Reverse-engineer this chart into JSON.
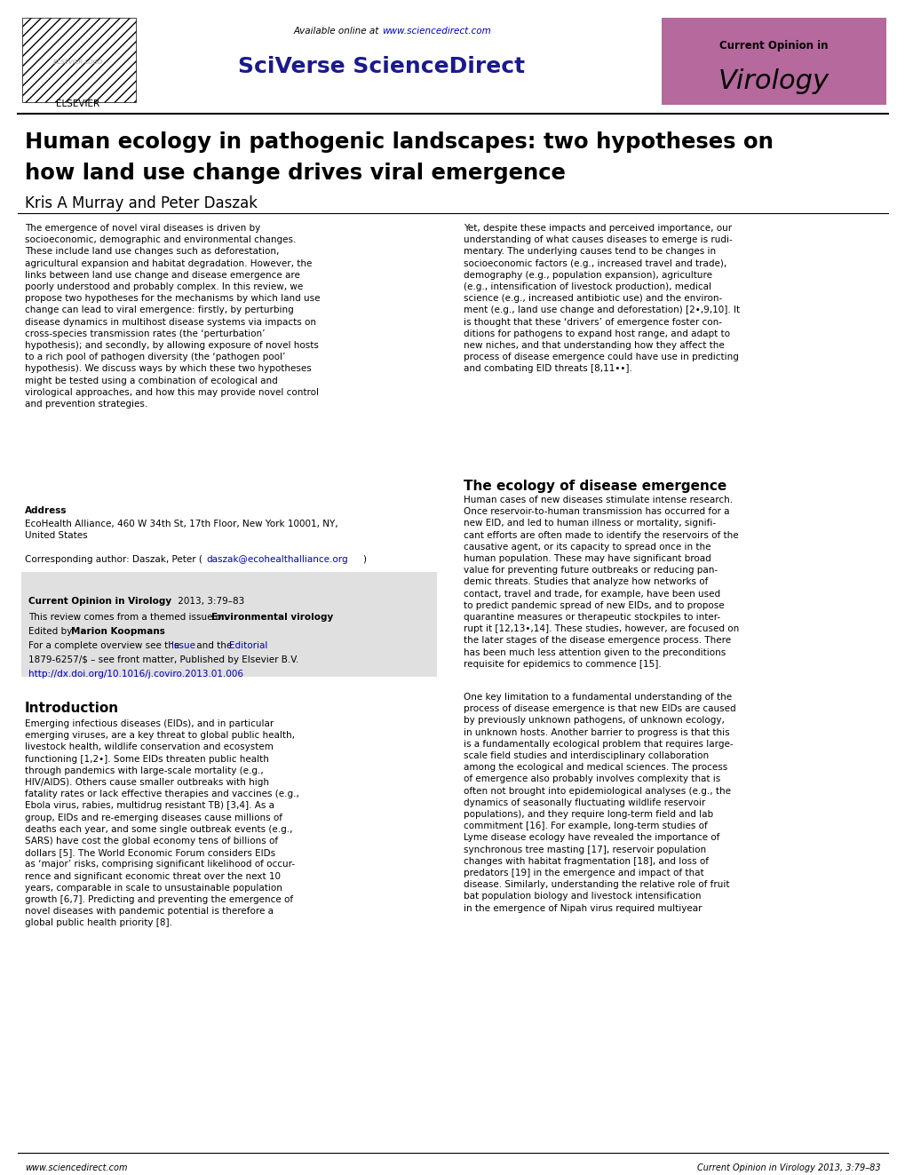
{
  "page_width": 10.2,
  "page_height": 13.23,
  "bg_color": "#ffffff",
  "header": {
    "sciverse_color": "#1a1a8c",
    "current_opinion_bg": "#b5699c"
  },
  "title_line1": "Human ecology in pathogenic landscapes: two hypotheses on",
  "title_line2": "how land use change drives viral emergence",
  "authors": "Kris A Murray and Peter Daszak",
  "left_col_abstract": "The emergence of novel viral diseases is driven by\nsocioeconomic, demographic and environmental changes.\nThese include land use changes such as deforestation,\nagricultural expansion and habitat degradation. However, the\nlinks between land use change and disease emergence are\npoorly understood and probably complex. In this review, we\npropose two hypotheses for the mechanisms by which land use\nchange can lead to viral emergence: firstly, by perturbing\ndisease dynamics in multihost disease systems via impacts on\ncross-species transmission rates (the ‘perturbation’\nhypothesis); and secondly, by allowing exposure of novel hosts\nto a rich pool of pathogen diversity (the ‘pathogen pool’\nhypothesis). We discuss ways by which these two hypotheses\nmight be tested using a combination of ecological and\nvirological approaches, and how this may provide novel control\nand prevention strategies.",
  "right_col_abstract": "Yet, despite these impacts and perceived importance, our\nunderstanding of what causes diseases to emerge is rudi-\nmentary. The underlying causes tend to be changes in\nsocioeconomic factors (e.g., increased travel and trade),\ndemography (e.g., population expansion), agriculture\n(e.g., intensification of livestock production), medical\nscience (e.g., increased antibiotic use) and the environ-\nment (e.g., land use change and deforestation) [2•,9,10]. It\nis thought that these ‘drivers’ of emergence foster con-\nditions for pathogens to expand host range, and adapt to\nnew niches, and that understanding how they affect the\nprocess of disease emergence could have use in predicting\nand combating EID threats [8,11••].",
  "address_label": "Address",
  "address_text": "EcoHealth Alliance, 460 W 34th St, 17th Floor, New York 10001, NY,\nUnited States",
  "info_box_bg": "#e0e0e0",
  "section_ecology": "The ecology of disease emergence",
  "ecology_text": "Human cases of new diseases stimulate intense research.\nOnce reservoir-to-human transmission has occurred for a\nnew EID, and led to human illness or mortality, signifi-\ncant efforts are often made to identify the reservoirs of the\ncausative agent, or its capacity to spread once in the\nhuman population. These may have significant broad\nvalue for preventing future outbreaks or reducing pan-\ndemic threats. Studies that analyze how networks of\ncontact, travel and trade, for example, have been used\nto predict pandemic spread of new EIDs, and to propose\nquarantine measures or therapeutic stockpiles to inter-\nrupt it [12,13•,14]. These studies, however, are focused on\nthe later stages of the disease emergence process. There\nhas been much less attention given to the preconditions\nrequisite for epidemics to commence [15].",
  "ecology_text2": "One key limitation to a fundamental understanding of the\nprocess of disease emergence is that new EIDs are caused\nby previously unknown pathogens, of unknown ecology,\nin unknown hosts. Another barrier to progress is that this\nis a fundamentally ecological problem that requires large-\nscale field studies and interdisciplinary collaboration\namong the ecological and medical sciences. The process\nof emergence also probably involves complexity that is\noften not brought into epidemiological analyses (e.g., the\ndynamics of seasonally fluctuating wildlife reservoir\npopulations), and they require long-term field and lab\ncommitment [16]. For example, long-term studies of\nLyme disease ecology have revealed the importance of\nsynchronous tree masting [17], reservoir population\nchanges with habitat fragmentation [18], and loss of\npredators [19] in the emergence and impact of that\ndisease. Similarly, understanding the relative role of fruit\nbat population biology and livestock intensification\nin the emergence of Nipah virus required multiyear",
  "intro_section": "Introduction",
  "intro_text": "Emerging infectious diseases (EIDs), and in particular\nemerging viruses, are a key threat to global public health,\nlivestock health, wildlife conservation and ecosystem\nfunctioning [1,2•]. Some EIDs threaten public health\nthrough pandemics with large-scale mortality (e.g.,\nHIV/AIDS). Others cause smaller outbreaks with high\nfatality rates or lack effective therapies and vaccines (e.g.,\nEbola virus, rabies, multidrug resistant TB) [3,4]. As a\ngroup, EIDs and re-emerging diseases cause millions of\ndeaths each year, and some single outbreak events (e.g.,\nSARS) have cost the global economy tens of billions of\ndollars [5]. The World Economic Forum considers EIDs\nas ‘major’ risks, comprising significant likelihood of occur-\nrence and significant economic threat over the next 10\nyears, comparable in scale to unsustainable population\ngrowth [6,7]. Predicting and preventing the emergence of\nnovel diseases with pandemic potential is therefore a\nglobal public health priority [8].",
  "footer_left": "www.sciencedirect.com",
  "footer_right": "Current Opinion in Virology 2013, 3:79–83",
  "link_color": "#0000bb",
  "text_color": "#000000"
}
